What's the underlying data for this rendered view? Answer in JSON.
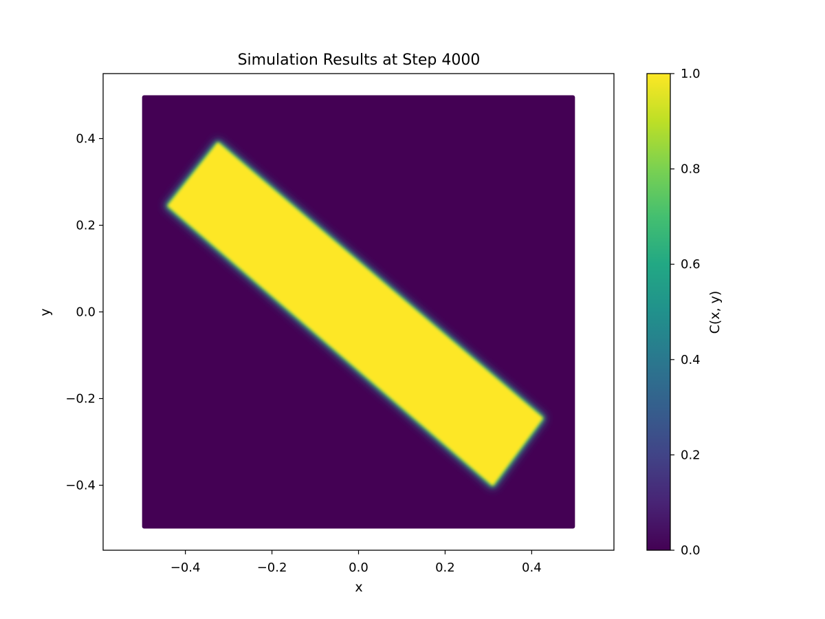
{
  "chart_data": {
    "type": "heatmap",
    "title": "Simulation Results at Step 4000",
    "xlabel": "x",
    "ylabel": "y",
    "xlim": [
      -0.59,
      0.59
    ],
    "ylim": [
      -0.55,
      0.55
    ],
    "domain": {
      "x": [
        -0.5,
        0.5
      ],
      "y": [
        -0.5,
        0.5
      ]
    },
    "xticks": [
      {
        "value": -0.4,
        "label": "−0.4"
      },
      {
        "value": -0.2,
        "label": "−0.2"
      },
      {
        "value": 0.0,
        "label": "0.0"
      },
      {
        "value": 0.2,
        "label": "0.2"
      },
      {
        "value": 0.4,
        "label": "0.4"
      }
    ],
    "yticks": [
      {
        "value": -0.4,
        "label": "−0.4"
      },
      {
        "value": -0.2,
        "label": "−0.2"
      },
      {
        "value": 0.0,
        "label": "0.0"
      },
      {
        "value": 0.2,
        "label": "0.2"
      },
      {
        "value": 0.4,
        "label": "0.4"
      }
    ],
    "field": {
      "description": "rotated rectangle with C=1 inside, C=0 outside",
      "corners": [
        [
          -0.325,
          0.39
        ],
        [
          0.425,
          -0.245
        ],
        [
          0.31,
          -0.4
        ],
        [
          -0.44,
          0.245
        ]
      ],
      "inside_value": 1.0,
      "outside_value": 0.0
    },
    "colorbar": {
      "label": "C(x, y)",
      "range": [
        0.0,
        1.0
      ],
      "colormap": "viridis",
      "ticks": [
        {
          "value": 0.0,
          "label": "0.0"
        },
        {
          "value": 0.2,
          "label": "0.2"
        },
        {
          "value": 0.4,
          "label": "0.4"
        },
        {
          "value": 0.6,
          "label": "0.6"
        },
        {
          "value": 0.8,
          "label": "0.8"
        },
        {
          "value": 1.0,
          "label": "1.0"
        }
      ]
    },
    "colors": {
      "low": "#440154",
      "high": "#fde725"
    }
  }
}
